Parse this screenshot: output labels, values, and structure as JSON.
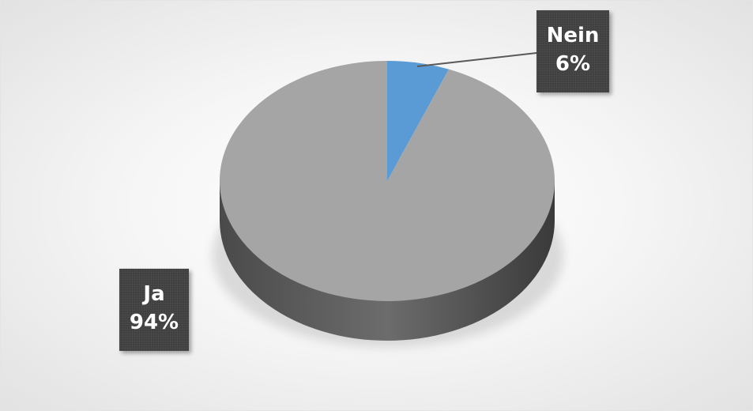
{
  "chart_data": {
    "type": "pie",
    "style": "3d",
    "categories": [
      "Nein",
      "Ja"
    ],
    "values": [
      6,
      94
    ],
    "unit": "%",
    "labels": [
      {
        "category": "Nein",
        "value": "6%"
      },
      {
        "category": "Ja",
        "value": "94%"
      }
    ],
    "colors": {
      "Nein": "#5b9bd5",
      "Ja": "#a5a5a5"
    },
    "title": "",
    "legend": "none"
  }
}
